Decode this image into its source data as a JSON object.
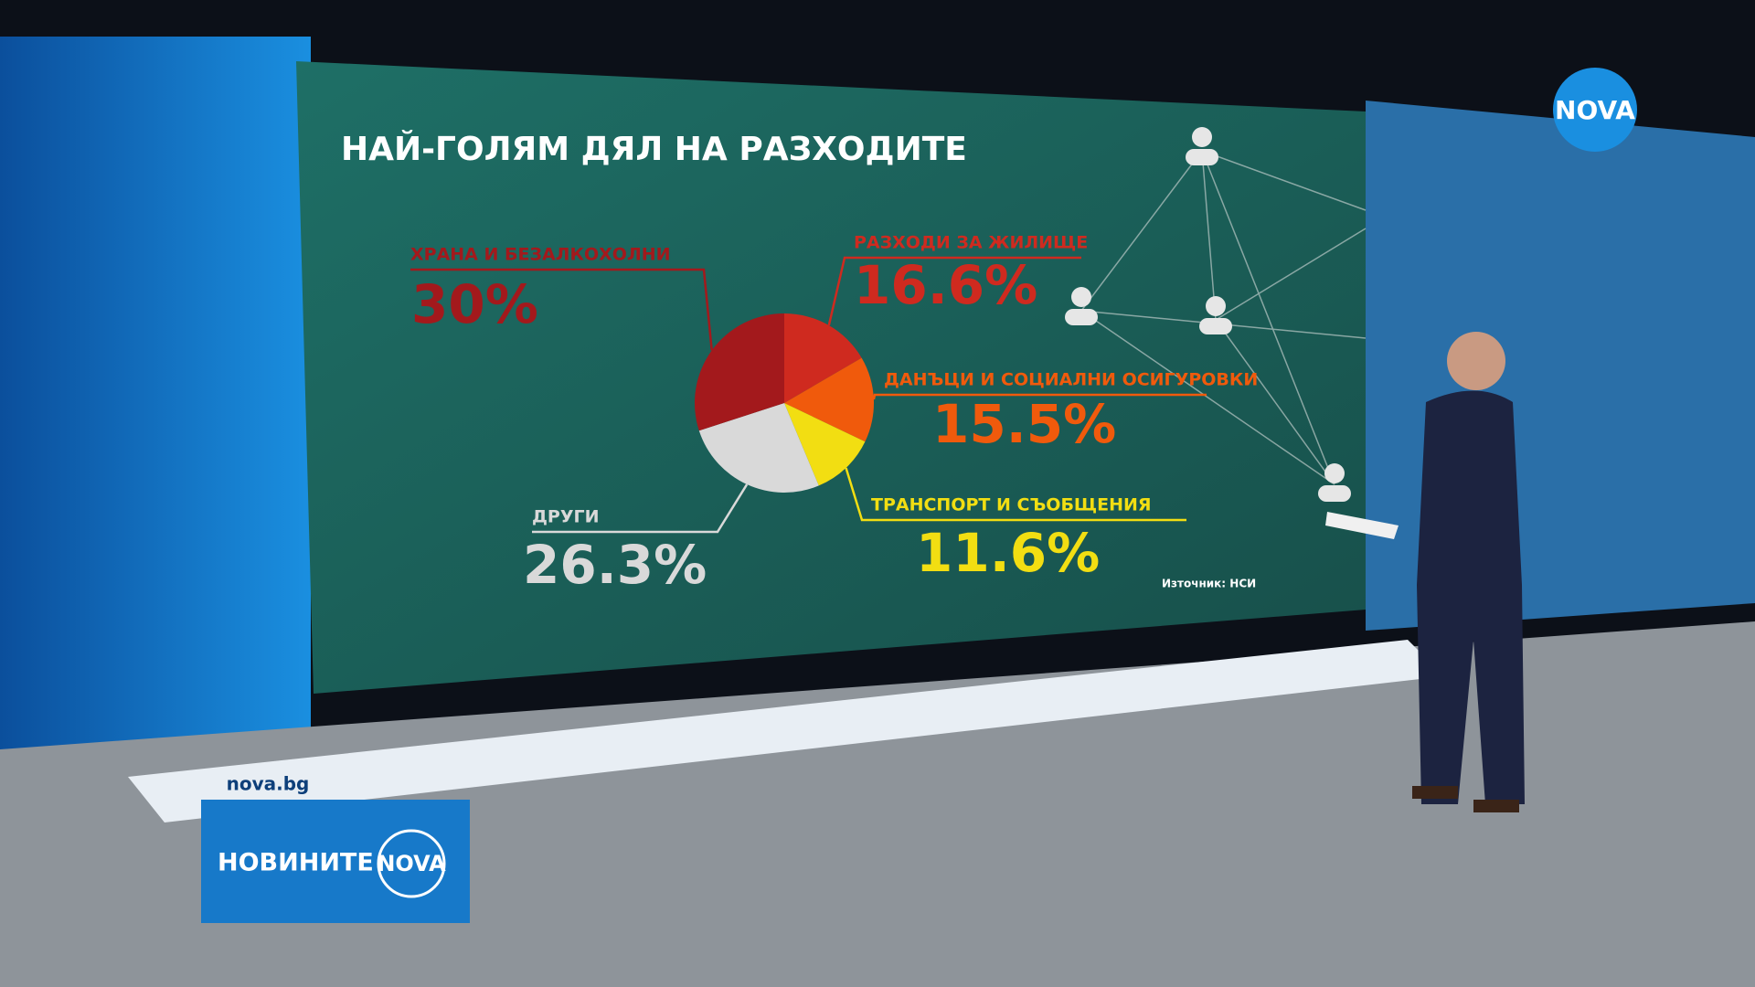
{
  "chart_data": {
    "type": "pie",
    "title": "НАЙ-ГОЛЯМ ДЯЛ НА РАЗХОДИТЕ",
    "categories": [
      "РАЗХОДИ ЗА ЖИЛИЩЕ",
      "ДАНЪЦИ И СОЦИАЛНИ ОСИГУРОВКИ",
      "ТРАНСПОРТ И СЪОБЩЕНИЯ",
      "ДРУГИ",
      "ХРАНА И БЕЗАЛКОХОЛНИ"
    ],
    "values": [
      16.6,
      15.5,
      11.6,
      26.3,
      30
    ],
    "value_labels": [
      "16.6%",
      "15.5%",
      "11.6%",
      "26.3%",
      "30%"
    ],
    "colors": [
      "#cf2a1f",
      "#f05a0c",
      "#f2de12",
      "#d9d9d9",
      "#a3191c"
    ],
    "source": "Източник: НСИ"
  },
  "screen": {
    "site": "nova.bg",
    "show": "НОВИНИТЕ",
    "logo": "NOVA"
  }
}
